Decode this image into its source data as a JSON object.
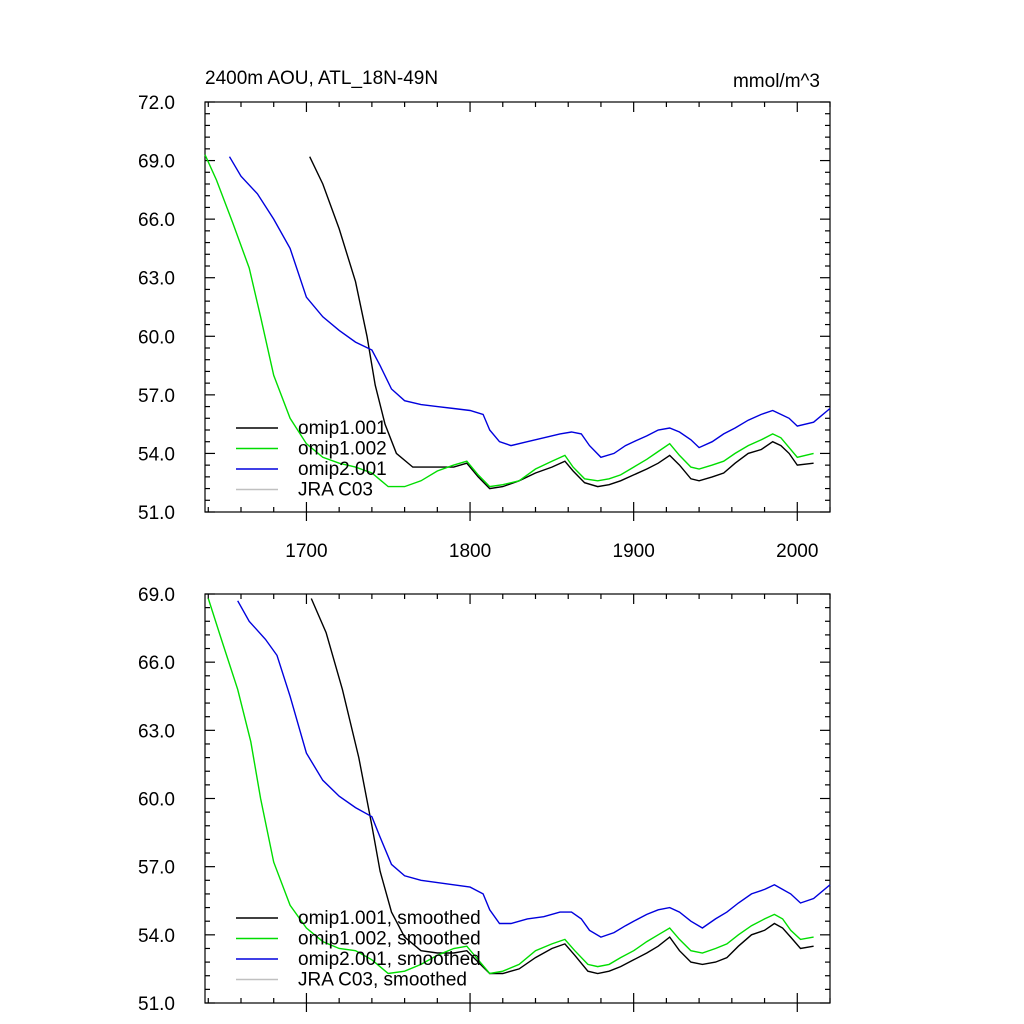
{
  "chart_data": [
    {
      "type": "line",
      "title": "2400m AOU, ATL_18N-49N",
      "units": "mmol/m^3",
      "xlabel": "",
      "ylabel": "",
      "xlim": [
        1638,
        2020
      ],
      "ylim": [
        51.0,
        72.0
      ],
      "x_ticks": [
        1700,
        1800,
        1900,
        2000
      ],
      "x_tick_labels": [
        "1700",
        "1800",
        "1900",
        "2000"
      ],
      "y_ticks": [
        51.0,
        54.0,
        57.0,
        60.0,
        63.0,
        66.0,
        69.0,
        72.0
      ],
      "y_tick_labels": [
        "51.0",
        "54.0",
        "57.0",
        "60.0",
        "63.0",
        "66.0",
        "69.0",
        "72.0"
      ],
      "legend": [
        "omip1.001",
        "omip1.002",
        "omip2.001",
        "JRA C03"
      ],
      "legend_position": "bottom-left",
      "series": [
        {
          "name": "omip1.001",
          "color": "#000000",
          "x": [
            1702,
            1710,
            1720,
            1730,
            1737,
            1742,
            1748,
            1755,
            1765,
            1780,
            1790,
            1798,
            1805,
            1812,
            1820,
            1830,
            1840,
            1850,
            1858,
            1863,
            1870,
            1878,
            1885,
            1892,
            1900,
            1908,
            1915,
            1922,
            1928,
            1935,
            1940,
            1948,
            1955,
            1962,
            1970,
            1978,
            1985,
            1990,
            1995,
            2000,
            2010
          ],
          "y": [
            69.2,
            67.8,
            65.5,
            62.8,
            60.0,
            57.5,
            55.5,
            54.0,
            53.3,
            53.3,
            53.3,
            53.5,
            52.8,
            52.2,
            52.3,
            52.6,
            53.0,
            53.3,
            53.6,
            53.1,
            52.5,
            52.3,
            52.4,
            52.6,
            52.9,
            53.2,
            53.5,
            53.9,
            53.4,
            52.7,
            52.6,
            52.8,
            53.0,
            53.5,
            54.0,
            54.2,
            54.6,
            54.4,
            54.0,
            53.4,
            53.5
          ]
        },
        {
          "name": "omip1.002",
          "color": "#00dd00",
          "x": [
            1638,
            1645,
            1655,
            1665,
            1672,
            1680,
            1690,
            1700,
            1710,
            1720,
            1730,
            1740,
            1750,
            1760,
            1770,
            1780,
            1790,
            1798,
            1805,
            1812,
            1820,
            1830,
            1840,
            1850,
            1858,
            1863,
            1870,
            1878,
            1885,
            1892,
            1900,
            1908,
            1915,
            1922,
            1928,
            1935,
            1940,
            1948,
            1955,
            1962,
            1970,
            1978,
            1985,
            1990,
            1995,
            2000,
            2010
          ],
          "y": [
            69.3,
            68.0,
            65.8,
            63.5,
            61.0,
            58.0,
            55.8,
            54.5,
            53.8,
            53.5,
            53.3,
            53.0,
            52.3,
            52.3,
            52.6,
            53.1,
            53.4,
            53.6,
            52.9,
            52.3,
            52.4,
            52.6,
            53.2,
            53.6,
            53.9,
            53.3,
            52.7,
            52.6,
            52.7,
            52.9,
            53.3,
            53.7,
            54.1,
            54.5,
            53.9,
            53.3,
            53.2,
            53.4,
            53.6,
            54.0,
            54.4,
            54.7,
            55.0,
            54.8,
            54.3,
            53.8,
            54.0
          ]
        },
        {
          "name": "omip2.001",
          "color": "#0000dd",
          "x": [
            1653,
            1660,
            1670,
            1680,
            1690,
            1700,
            1710,
            1720,
            1730,
            1740,
            1745,
            1752,
            1760,
            1770,
            1780,
            1790,
            1800,
            1808,
            1812,
            1818,
            1825,
            1835,
            1845,
            1855,
            1862,
            1868,
            1873,
            1880,
            1888,
            1895,
            1900,
            1908,
            1915,
            1922,
            1928,
            1935,
            1940,
            1948,
            1955,
            1962,
            1970,
            1978,
            1985,
            1990,
            1995,
            2000,
            2010,
            2020
          ],
          "y": [
            69.2,
            68.2,
            67.3,
            66.0,
            64.5,
            62.0,
            61.0,
            60.3,
            59.7,
            59.3,
            58.5,
            57.3,
            56.7,
            56.5,
            56.4,
            56.3,
            56.2,
            56.0,
            55.2,
            54.6,
            54.4,
            54.6,
            54.8,
            55.0,
            55.1,
            55.0,
            54.4,
            53.8,
            54.0,
            54.4,
            54.6,
            54.9,
            55.2,
            55.3,
            55.1,
            54.7,
            54.3,
            54.6,
            55.0,
            55.3,
            55.7,
            56.0,
            56.2,
            56.0,
            55.8,
            55.4,
            55.6,
            56.3
          ]
        },
        {
          "name": "JRA C03",
          "color": "#c0c0c0",
          "x": [],
          "y": []
        }
      ]
    },
    {
      "type": "line",
      "title": "",
      "xlabel": "",
      "ylabel": "",
      "xlim": [
        1638,
        2020
      ],
      "ylim": [
        51.0,
        69.0
      ],
      "x_ticks": [
        1700,
        1800,
        1900,
        2000
      ],
      "y_ticks": [
        51.0,
        54.0,
        57.0,
        60.0,
        63.0,
        66.0,
        69.0
      ],
      "y_tick_labels": [
        "51.0",
        "54.0",
        "57.0",
        "60.0",
        "63.0",
        "66.0",
        "69.0"
      ],
      "legend": [
        "omip1.001, smoothed",
        "omip1.002, smoothed",
        "omip2.001, smoothed",
        "JRA C03, smoothed"
      ],
      "legend_position": "bottom-left",
      "series": [
        {
          "name": "omip1.001, smoothed",
          "color": "#000000",
          "x": [
            1703,
            1712,
            1722,
            1732,
            1740,
            1745,
            1752,
            1760,
            1770,
            1780,
            1790,
            1798,
            1805,
            1812,
            1820,
            1830,
            1840,
            1850,
            1858,
            1864,
            1872,
            1878,
            1885,
            1892,
            1900,
            1908,
            1915,
            1922,
            1928,
            1935,
            1942,
            1950,
            1957,
            1964,
            1972,
            1980,
            1986,
            1991,
            1996,
            2002,
            2010
          ],
          "y": [
            68.8,
            67.3,
            64.8,
            61.8,
            58.8,
            56.8,
            55.0,
            53.9,
            53.3,
            53.2,
            53.2,
            53.3,
            52.8,
            52.3,
            52.3,
            52.5,
            53.0,
            53.4,
            53.6,
            53.1,
            52.4,
            52.3,
            52.4,
            52.6,
            52.9,
            53.2,
            53.5,
            53.9,
            53.3,
            52.8,
            52.7,
            52.8,
            53.0,
            53.5,
            54.0,
            54.2,
            54.5,
            54.3,
            53.9,
            53.4,
            53.5
          ]
        },
        {
          "name": "omip1.002, smoothed",
          "color": "#00dd00",
          "x": [
            1640,
            1648,
            1658,
            1666,
            1672,
            1680,
            1690,
            1700,
            1710,
            1720,
            1730,
            1740,
            1750,
            1760,
            1770,
            1780,
            1790,
            1798,
            1805,
            1812,
            1820,
            1830,
            1840,
            1850,
            1858,
            1864,
            1872,
            1878,
            1885,
            1892,
            1900,
            1908,
            1915,
            1922,
            1928,
            1935,
            1942,
            1950,
            1957,
            1964,
            1972,
            1980,
            1986,
            1991,
            1996,
            2002,
            2010
          ],
          "y": [
            68.8,
            67.0,
            64.8,
            62.5,
            60.0,
            57.2,
            55.3,
            54.3,
            53.7,
            53.4,
            53.3,
            52.9,
            52.3,
            52.4,
            52.7,
            53.1,
            53.4,
            53.5,
            52.9,
            52.3,
            52.4,
            52.7,
            53.3,
            53.6,
            53.8,
            53.3,
            52.7,
            52.6,
            52.7,
            53.0,
            53.3,
            53.7,
            54.0,
            54.3,
            53.8,
            53.3,
            53.2,
            53.4,
            53.6,
            54.0,
            54.4,
            54.7,
            54.9,
            54.7,
            54.2,
            53.8,
            53.9
          ]
        },
        {
          "name": "omip2.001, smoothed",
          "color": "#0000dd",
          "x": [
            1658,
            1665,
            1675,
            1682,
            1690,
            1700,
            1710,
            1720,
            1730,
            1740,
            1745,
            1752,
            1760,
            1770,
            1780,
            1790,
            1800,
            1808,
            1812,
            1818,
            1825,
            1835,
            1845,
            1855,
            1862,
            1868,
            1873,
            1880,
            1888,
            1895,
            1900,
            1908,
            1915,
            1922,
            1928,
            1935,
            1942,
            1950,
            1957,
            1964,
            1972,
            1980,
            1986,
            1991,
            1996,
            2002,
            2010,
            2020
          ],
          "y": [
            68.7,
            67.8,
            67.0,
            66.3,
            64.5,
            62.0,
            60.8,
            60.1,
            59.6,
            59.2,
            58.3,
            57.1,
            56.6,
            56.4,
            56.3,
            56.2,
            56.1,
            55.8,
            55.1,
            54.5,
            54.5,
            54.7,
            54.8,
            55.0,
            55.0,
            54.7,
            54.2,
            53.9,
            54.1,
            54.4,
            54.6,
            54.9,
            55.1,
            55.2,
            55.0,
            54.6,
            54.3,
            54.7,
            55.0,
            55.4,
            55.8,
            56.0,
            56.2,
            56.0,
            55.8,
            55.4,
            55.6,
            56.2
          ]
        },
        {
          "name": "JRA C03, smoothed",
          "color": "#c0c0c0",
          "x": [],
          "y": []
        }
      ]
    }
  ]
}
